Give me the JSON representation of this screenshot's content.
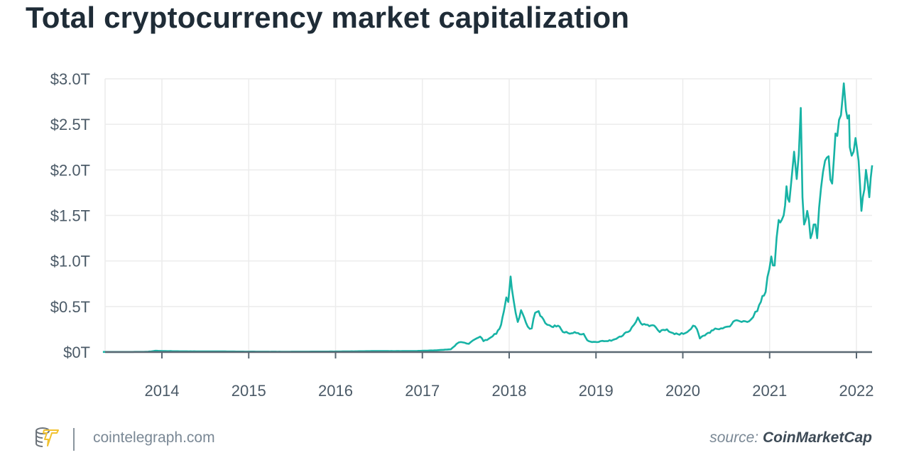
{
  "title": "Total cryptocurrency market capitalization",
  "footer": {
    "site": "cointelegraph.com",
    "source_prefix": "source:",
    "source_name": "CoinMarketCap"
  },
  "colors": {
    "line": "#17b3a5",
    "grid": "#ececec",
    "axis": "#5b6873",
    "text": "#4b5a67"
  },
  "chart_data": {
    "type": "line",
    "title": "Total cryptocurrency market capitalization",
    "xlabel": "",
    "ylabel": "",
    "grid": true,
    "ylim": [
      0,
      3.0
    ],
    "xlim": [
      "2013-04-28",
      "2022-03-08"
    ],
    "y_ticks": [
      0,
      0.5,
      1.0,
      1.5,
      2.0,
      2.5,
      3.0
    ],
    "y_tick_labels": [
      "$0T",
      "$0.5T",
      "$1.0T",
      "$1.5T",
      "$2.0T",
      "$2.5T",
      "$3.0T"
    ],
    "x_ticks": [
      "2014-01-01",
      "2015-01-01",
      "2016-01-01",
      "2017-01-01",
      "2018-01-01",
      "2019-01-01",
      "2020-01-01",
      "2021-01-01",
      "2022-01-01"
    ],
    "x_tick_labels": [
      "2014",
      "2015",
      "2016",
      "2017",
      "2018",
      "2019",
      "2020",
      "2021",
      "2022"
    ],
    "series": [
      {
        "unit": "trillion USD",
        "x": [
          "2013-04-28",
          "2013-08-01",
          "2013-11-01",
          "2013-12-04",
          "2014-01-15",
          "2014-03-01",
          "2014-06-01",
          "2014-09-01",
          "2015-01-01",
          "2015-06-01",
          "2016-01-01",
          "2016-06-01",
          "2016-12-01",
          "2017-03-01",
          "2017-05-01",
          "2017-05-25",
          "2017-06-12",
          "2017-07-15",
          "2017-08-10",
          "2017-09-01",
          "2017-09-15",
          "2017-10-15",
          "2017-11-08",
          "2017-11-28",
          "2017-12-10",
          "2017-12-20",
          "2017-12-28",
          "2018-01-07",
          "2018-01-12",
          "2018-01-20",
          "2018-02-06",
          "2018-02-20",
          "2018-03-05",
          "2018-03-20",
          "2018-04-06",
          "2018-04-20",
          "2018-05-05",
          "2018-05-25",
          "2018-06-10",
          "2018-06-28",
          "2018-07-25",
          "2018-08-15",
          "2018-09-05",
          "2018-10-10",
          "2018-11-10",
          "2018-11-25",
          "2018-12-15",
          "2019-01-20",
          "2019-02-20",
          "2019-03-20",
          "2019-04-10",
          "2019-05-15",
          "2019-06-10",
          "2019-06-26",
          "2019-07-15",
          "2019-08-06",
          "2019-09-10",
          "2019-09-26",
          "2019-10-26",
          "2019-11-20",
          "2019-12-18",
          "2020-01-20",
          "2020-02-13",
          "2020-03-01",
          "2020-03-13",
          "2020-04-10",
          "2020-05-08",
          "2020-06-10",
          "2020-07-10",
          "2020-08-15",
          "2020-09-05",
          "2020-10-15",
          "2020-11-10",
          "2020-11-25",
          "2020-12-15",
          "2021-01-08",
          "2021-01-22",
          "2021-02-08",
          "2021-02-21",
          "2021-03-01",
          "2021-03-13",
          "2021-03-25",
          "2021-04-05",
          "2021-04-14",
          "2021-04-25",
          "2021-05-12",
          "2021-05-19",
          "2021-05-26",
          "2021-06-08",
          "2021-06-15",
          "2021-06-22",
          "2021-07-05",
          "2021-07-20",
          "2021-08-05",
          "2021-08-22",
          "2021-09-06",
          "2021-09-21",
          "2021-10-05",
          "2021-10-20",
          "2021-10-28",
          "2021-11-09",
          "2021-11-18",
          "2021-12-01",
          "2021-12-04",
          "2021-12-20",
          "2021-12-28",
          "2022-01-10",
          "2022-01-22",
          "2022-01-28",
          "2022-02-10",
          "2022-02-24",
          "2022-03-08"
        ],
        "y": [
          0.0015,
          0.0012,
          0.003,
          0.014,
          0.011,
          0.009,
          0.008,
          0.007,
          0.005,
          0.004,
          0.006,
          0.011,
          0.011,
          0.019,
          0.03,
          0.09,
          0.11,
          0.09,
          0.14,
          0.17,
          0.12,
          0.16,
          0.2,
          0.3,
          0.45,
          0.6,
          0.55,
          0.83,
          0.7,
          0.56,
          0.33,
          0.46,
          0.38,
          0.28,
          0.26,
          0.43,
          0.45,
          0.36,
          0.3,
          0.28,
          0.29,
          0.22,
          0.21,
          0.21,
          0.2,
          0.13,
          0.11,
          0.12,
          0.12,
          0.14,
          0.17,
          0.22,
          0.3,
          0.38,
          0.3,
          0.3,
          0.27,
          0.22,
          0.25,
          0.21,
          0.19,
          0.22,
          0.29,
          0.25,
          0.15,
          0.2,
          0.24,
          0.26,
          0.28,
          0.35,
          0.33,
          0.36,
          0.45,
          0.55,
          0.66,
          1.05,
          0.95,
          1.45,
          1.45,
          1.5,
          1.82,
          1.65,
          1.95,
          2.2,
          1.9,
          2.68,
          1.7,
          1.4,
          1.55,
          1.45,
          1.25,
          1.4,
          1.25,
          1.8,
          2.1,
          2.15,
          1.85,
          2.4,
          2.55,
          2.6,
          2.95,
          2.65,
          2.6,
          2.25,
          2.2,
          2.35,
          2.1,
          1.55,
          1.7,
          2.0,
          1.7,
          2.05
        ]
      }
    ]
  }
}
